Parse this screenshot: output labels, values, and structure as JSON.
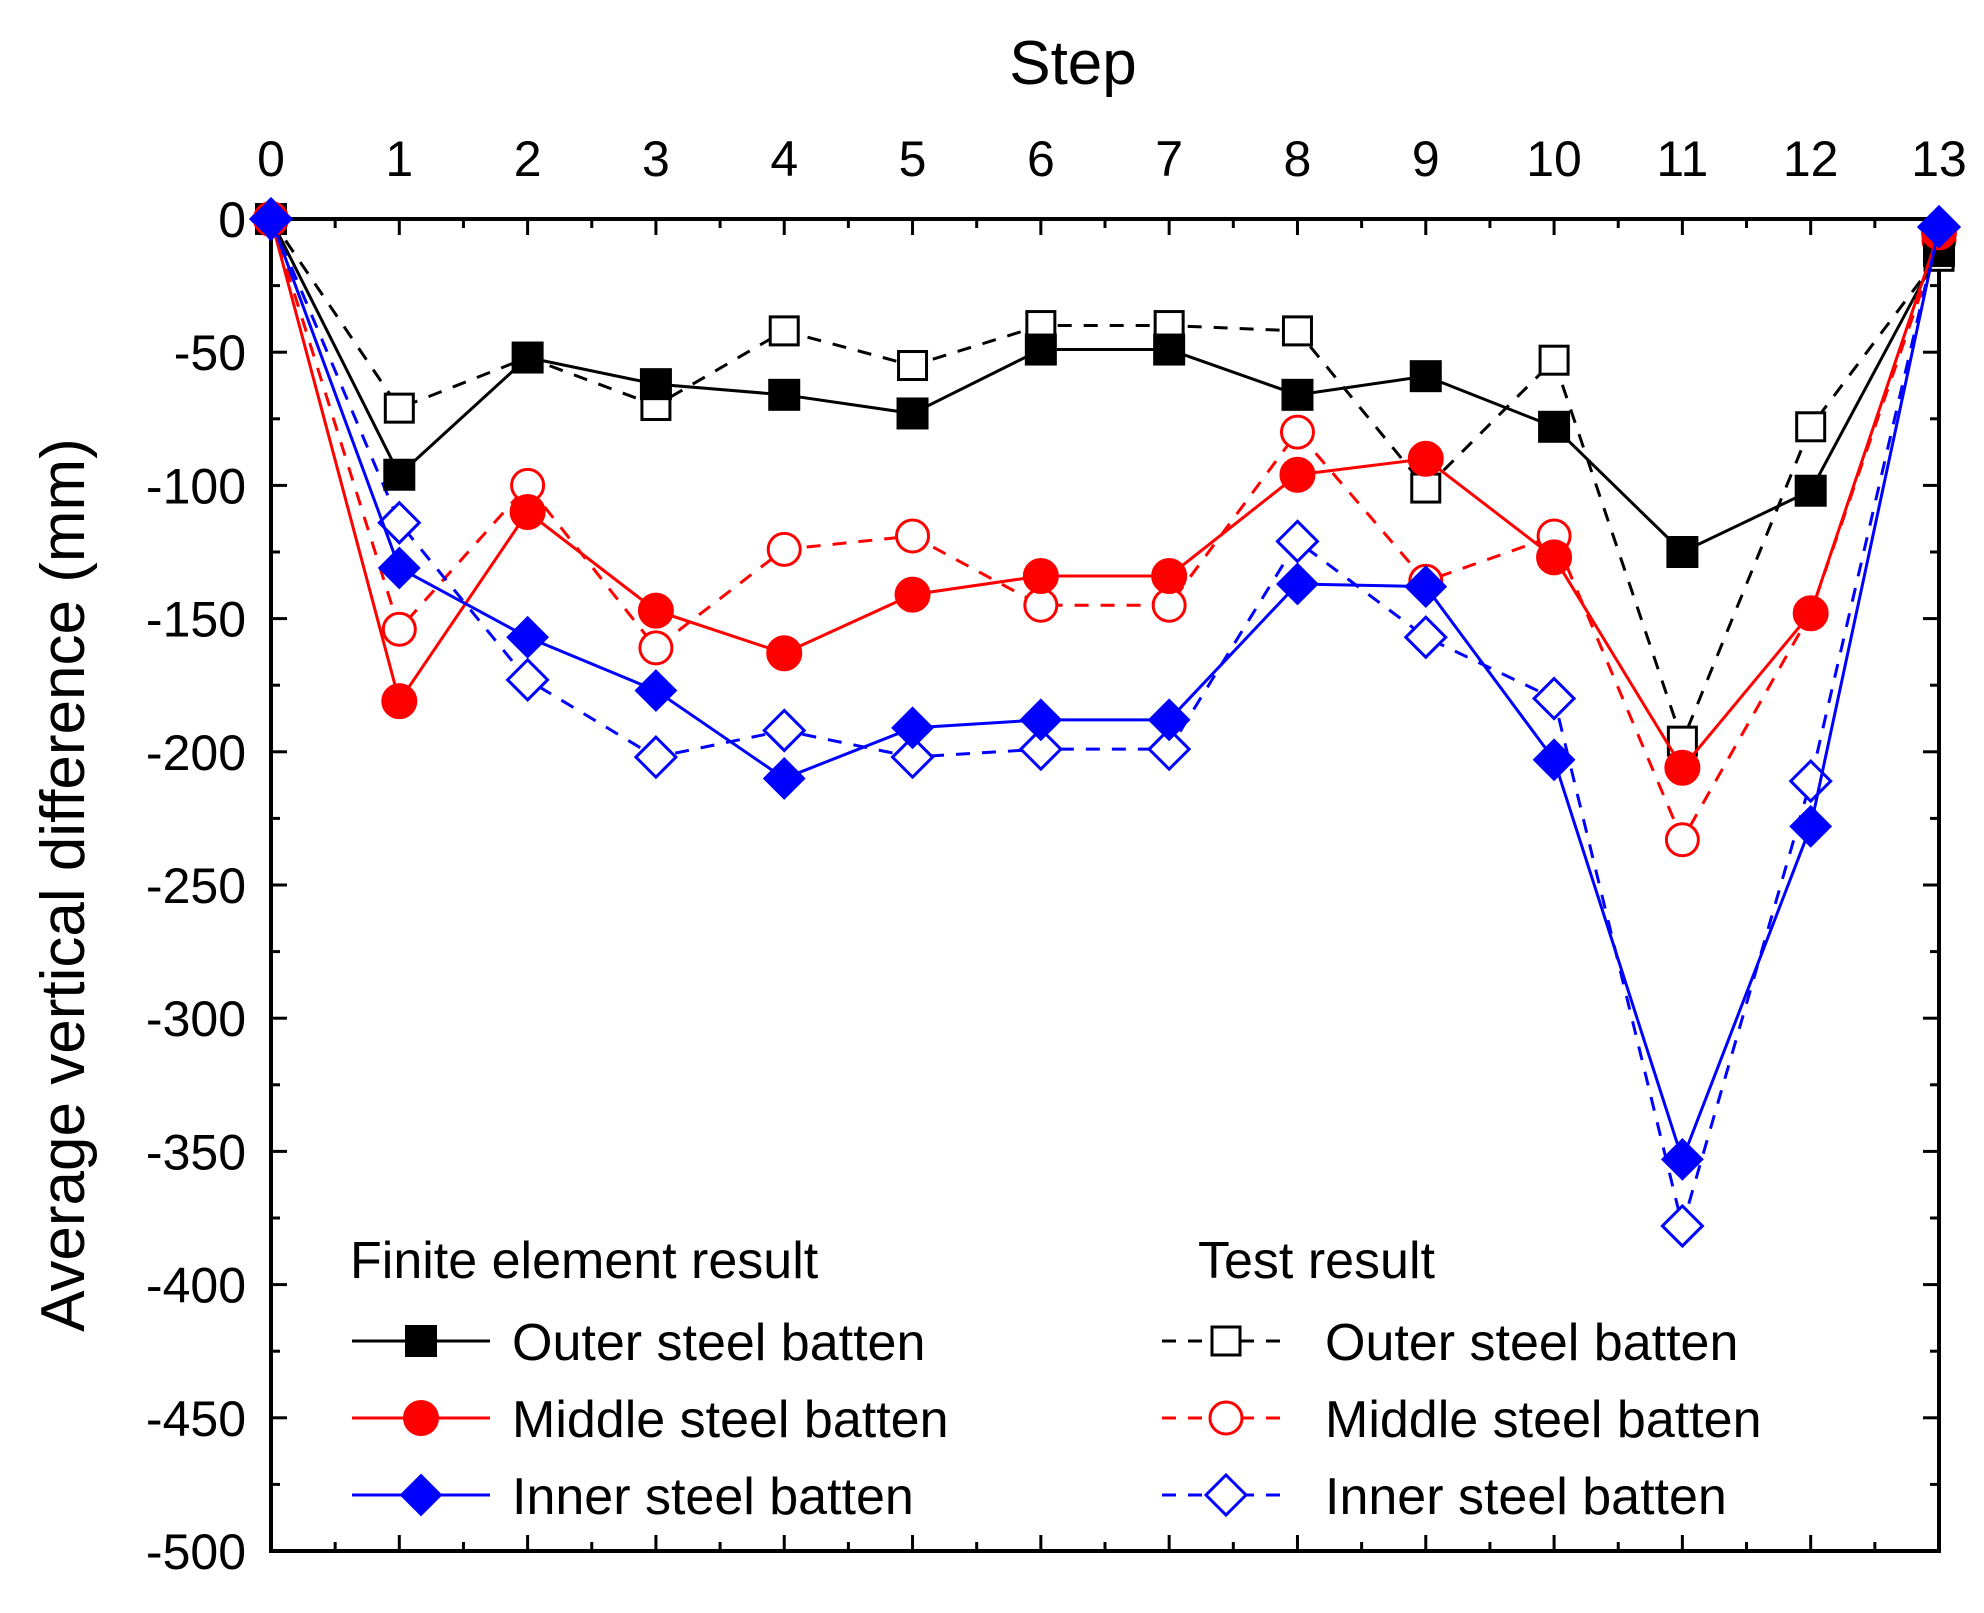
{
  "chart_data": {
    "type": "line",
    "xlabel": "Step",
    "ylabel": "Average vertical difference (mm)",
    "xlim": [
      0,
      13
    ],
    "ylim": [
      -500,
      0
    ],
    "x_ticks": [
      "0",
      "1",
      "2",
      "3",
      "4",
      "5",
      "6",
      "7",
      "8",
      "9",
      "10",
      "11",
      "12",
      "13"
    ],
    "y_ticks": [
      "0",
      "-50",
      "-100",
      "-150",
      "-200",
      "-250",
      "-300",
      "-350",
      "-400",
      "-450",
      "-500"
    ],
    "x_tick_values": [
      0,
      1,
      2,
      3,
      4,
      5,
      6,
      7,
      8,
      9,
      10,
      11,
      12,
      13
    ],
    "y_tick_values": [
      0,
      -50,
      -100,
      -150,
      -200,
      -250,
      -300,
      -350,
      -400,
      -450,
      -500
    ],
    "x_axis_position": "top",
    "grid": false,
    "legend": {
      "placement": "bottom",
      "group_titles": [
        "Finite element result",
        "Test result"
      ]
    },
    "x": [
      0,
      1,
      2,
      3,
      4,
      5,
      6,
      7,
      8,
      9,
      10,
      11,
      12,
      13
    ],
    "series": [
      {
        "name": "Outer steel batten",
        "group": "Finite element result",
        "color": "#000000",
        "marker": "square",
        "filled": true,
        "dashed": false,
        "values": [
          0,
          -96,
          -52,
          -62,
          -66,
          -73,
          -49,
          -49,
          -66,
          -59,
          -78,
          -125,
          -102,
          -12
        ]
      },
      {
        "name": "Middle steel batten",
        "group": "Finite element result",
        "color": "#ff0000",
        "marker": "circle",
        "filled": true,
        "dashed": false,
        "values": [
          0,
          -181,
          -110,
          -147,
          -163,
          -141,
          -134,
          -134,
          -96,
          -90,
          -127,
          -206,
          -148,
          -5
        ]
      },
      {
        "name": "Inner steel batten",
        "group": "Finite element result",
        "color": "#0000ff",
        "marker": "diamond",
        "filled": true,
        "dashed": false,
        "values": [
          0,
          -131,
          -157,
          -177,
          -210,
          -191,
          -188,
          -188,
          -137,
          -138,
          -203,
          -353,
          -228,
          -3
        ]
      },
      {
        "name": "Outer steel batten",
        "group": "Test result",
        "color": "#000000",
        "marker": "square",
        "filled": false,
        "dashed": true,
        "values": [
          0,
          -71,
          -52,
          -70,
          -42,
          -55,
          -40,
          -40,
          -42,
          -101,
          -53,
          -196,
          -78,
          -14
        ]
      },
      {
        "name": "Middle steel batten",
        "group": "Test result",
        "color": "#ff0000",
        "marker": "circle",
        "filled": false,
        "dashed": true,
        "values": [
          0,
          -154,
          -100,
          -161,
          -124,
          -119,
          -145,
          -145,
          -80,
          -136,
          -119,
          -233,
          -148,
          -8
        ]
      },
      {
        "name": "Inner steel batten",
        "group": "Test result",
        "color": "#0000ff",
        "marker": "diamond",
        "filled": false,
        "dashed": true,
        "values": [
          0,
          -114,
          -173,
          -202,
          -192,
          -202,
          -199,
          -199,
          -121,
          -157,
          -180,
          -378,
          -211,
          -3
        ]
      }
    ]
  }
}
